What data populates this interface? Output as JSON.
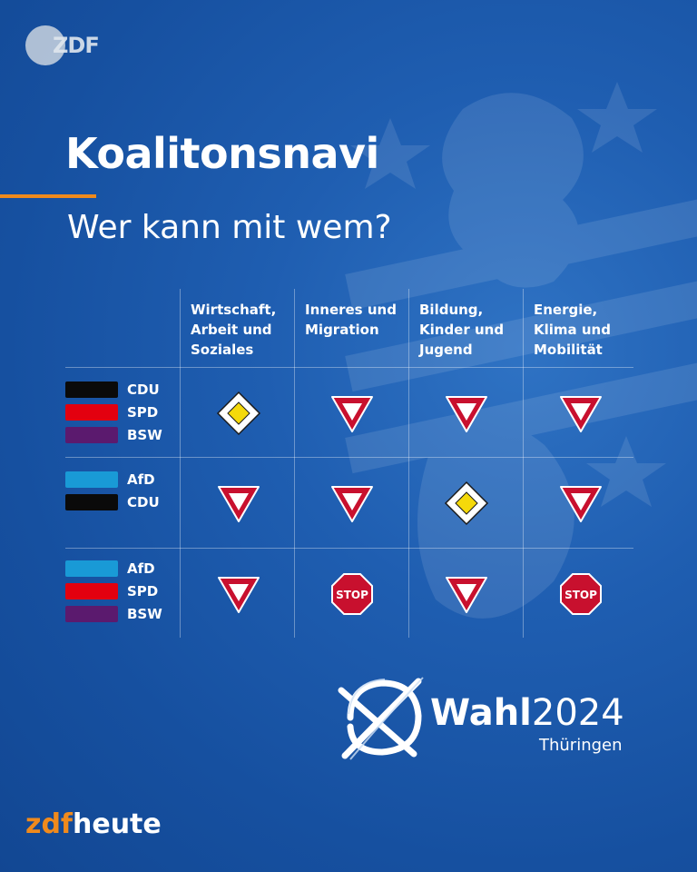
{
  "header": {
    "logo_text": "ZDF",
    "title": "Koalitonsnavi",
    "subtitle": "Wer kann mit wem?"
  },
  "colors": {
    "background": "#1a56a6",
    "accent": "#f08a1c",
    "sign_red": "#c8102e",
    "sign_yellow": "#f5d90a"
  },
  "table": {
    "columns": [
      {
        "label": "Wirtschaft,\nArbeit und\nSoziales"
      },
      {
        "label": "Inneres und\nMigration"
      },
      {
        "label": "Bildung,\nKinder und\nJugend"
      },
      {
        "label": "Energie,\nKlima und\nMobilität"
      }
    ],
    "rows": [
      {
        "parties": [
          {
            "name": "CDU",
            "color": "#0a0a0a"
          },
          {
            "name": "SPD",
            "color": "#e3000f"
          },
          {
            "name": "BSW",
            "color": "#5b1a6e"
          }
        ],
        "signs": [
          "priority-road",
          "yield",
          "yield",
          "yield"
        ]
      },
      {
        "parties": [
          {
            "name": "AfD",
            "color": "#199ad6"
          },
          {
            "name": "CDU",
            "color": "#0a0a0a"
          }
        ],
        "signs": [
          "yield",
          "yield",
          "priority-road",
          "yield"
        ]
      },
      {
        "parties": [
          {
            "name": "AfD",
            "color": "#199ad6"
          },
          {
            "name": "SPD",
            "color": "#e3000f"
          },
          {
            "name": "BSW",
            "color": "#5b1a6e"
          }
        ],
        "signs": [
          "yield",
          "stop",
          "yield",
          "stop"
        ]
      }
    ],
    "stop_text": "STOP"
  },
  "footer": {
    "wahl_bold": "Wahl",
    "wahl_year": "2024",
    "wahl_region": "Thüringen",
    "brand_zdf": "zdf",
    "brand_heute": "heute"
  }
}
